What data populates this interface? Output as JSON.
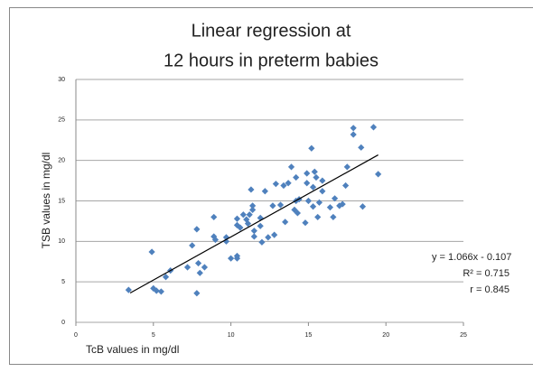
{
  "chart_data": {
    "type": "scatter",
    "title": [
      "Linear regression  at",
      "12 hours in preterm babies"
    ],
    "x_label": "TcB values in mg/dl",
    "y_label": "TSB values in mg/dl",
    "xlim": [
      0,
      25
    ],
    "xticks": [
      0,
      5,
      10,
      15,
      20,
      25
    ],
    "ylim": [
      0,
      30
    ],
    "yticks": [
      0,
      5,
      10,
      15,
      20,
      25,
      30
    ],
    "grid": true,
    "series": [
      {
        "name": null,
        "color": "#4f81bd",
        "x": [
          3.4,
          4.9,
          5.0,
          5.2,
          5.5,
          5.8,
          6.1,
          7.2,
          7.5,
          7.8,
          7.8,
          7.9,
          8.0,
          8.3,
          8.9,
          8.9,
          9.0,
          9.7,
          9.7,
          10.0,
          10.4,
          10.4,
          10.4,
          10.4,
          10.6,
          10.8,
          11.0,
          11.1,
          11.2,
          11.3,
          11.4,
          11.4,
          11.5,
          11.5,
          11.9,
          11.9,
          12.0,
          12.2,
          12.4,
          12.7,
          12.8,
          12.9,
          13.2,
          13.4,
          13.5,
          13.7,
          13.9,
          14.1,
          14.2,
          14.2,
          14.3,
          14.4,
          14.8,
          14.9,
          14.9,
          15.0,
          15.2,
          15.3,
          15.3,
          15.4,
          15.5,
          15.6,
          15.7,
          15.9,
          15.9,
          16.4,
          16.6,
          16.7,
          17.0,
          17.2,
          17.4,
          17.5,
          17.9,
          17.9,
          18.4,
          18.5,
          19.2,
          19.5
        ],
        "values": [
          4.0,
          8.7,
          4.2,
          3.9,
          3.8,
          5.6,
          6.4,
          6.8,
          9.5,
          11.5,
          3.6,
          7.3,
          6.1,
          6.8,
          10.6,
          13.0,
          10.2,
          10.0,
          10.5,
          7.9,
          8.2,
          7.9,
          12.8,
          12.0,
          11.7,
          13.3,
          12.7,
          12.2,
          13.3,
          16.4,
          13.9,
          14.4,
          11.3,
          10.6,
          11.9,
          12.9,
          9.9,
          16.2,
          10.5,
          14.4,
          10.8,
          17.1,
          14.5,
          16.9,
          12.4,
          17.2,
          19.2,
          13.9,
          15.0,
          17.9,
          13.5,
          15.2,
          12.3,
          18.4,
          17.2,
          15.0,
          21.5,
          16.7,
          14.3,
          18.6,
          17.9,
          13.0,
          14.8,
          16.2,
          17.5,
          14.2,
          13.0,
          15.3,
          14.4,
          14.6,
          16.9,
          19.2,
          24.0,
          23.2,
          21.6,
          14.3,
          24.1,
          18.3
        ]
      }
    ],
    "trendline": {
      "slope": 1.066,
      "intercept": -0.107,
      "x_range": [
        3.5,
        19.5
      ],
      "color": "#000000"
    },
    "annotations": [
      "y = 1.066x - 0.107",
      "R² = 0.715",
      "r = 0.845"
    ]
  }
}
